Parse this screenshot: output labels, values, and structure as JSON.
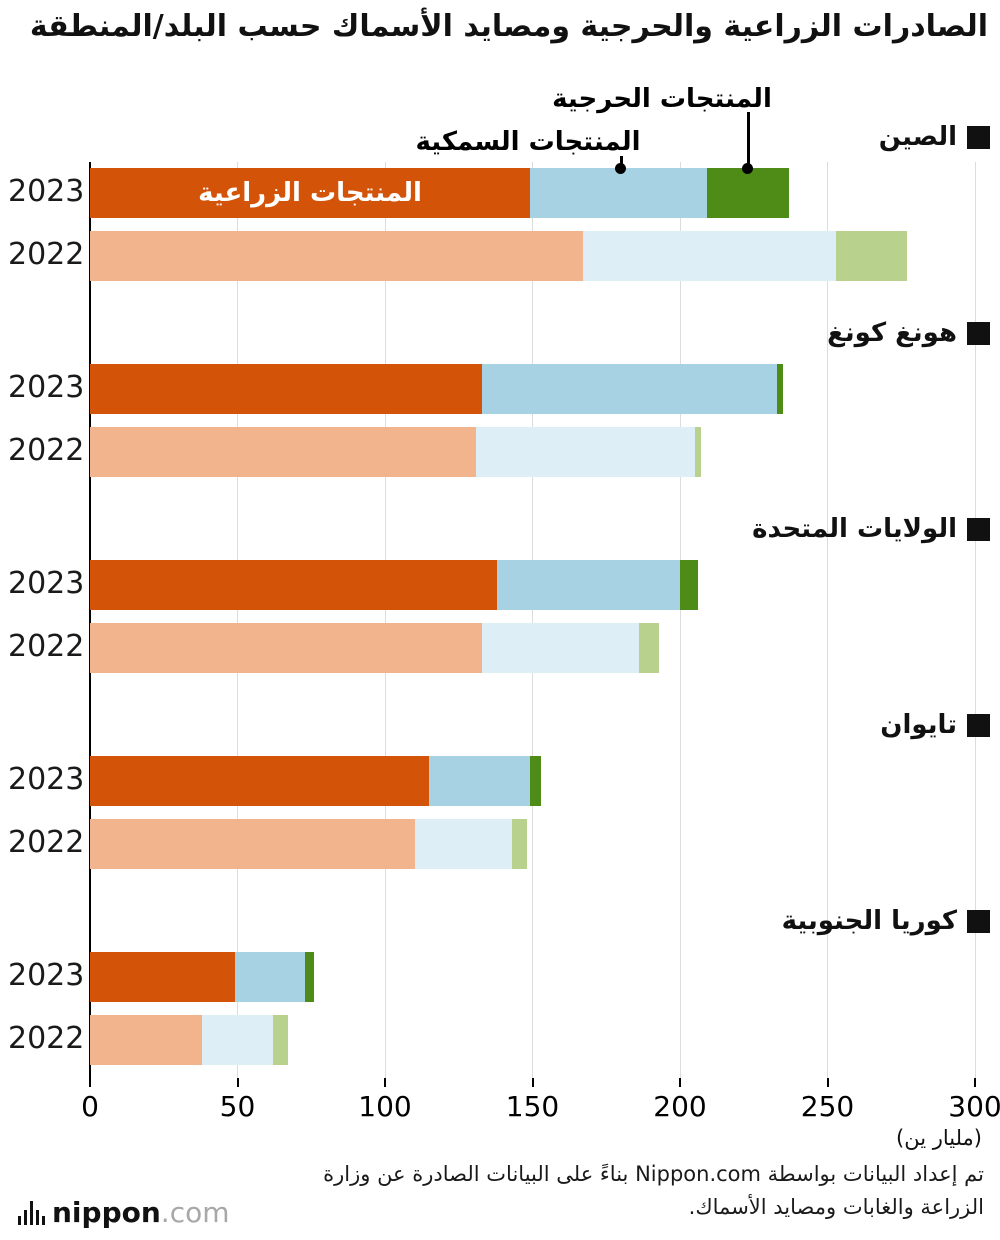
{
  "title": "الصادرات الزراعية والحرجية ومصايد الأسماك حسب البلد/المنطقة",
  "legend": {
    "forestry": "المنتجات الحرجية",
    "fishery": "المنتجات السمكية",
    "agriculture": "المنتجات الزراعية"
  },
  "colors": {
    "y2023": {
      "agriculture": "#d35408",
      "fishery": "#a6d2e3",
      "forestry": "#4e8b17"
    },
    "y2022": {
      "agriculture": "#f2b48c",
      "fishery": "#ddeef6",
      "forestry": "#b8d28e"
    }
  },
  "axis": {
    "ticks": [
      0,
      50,
      100,
      150,
      200,
      250,
      300
    ],
    "max": 300,
    "unit": "(مليار ين)"
  },
  "chart_data": {
    "type": "bar",
    "orientation": "horizontal",
    "stacked": true,
    "title": "الصادرات الزراعية والحرجية ومصايد الأسماك حسب البلد/المنطقة",
    "unit": "مليار ين",
    "xlim": [
      0,
      300
    ],
    "grid": true,
    "segments_order": [
      "agriculture",
      "fishery",
      "forestry"
    ],
    "series_labels": {
      "agriculture": "المنتجات الزراعية",
      "fishery": "المنتجات السمكية",
      "forestry": "المنتجات الحرجية"
    },
    "groups": [
      {
        "id": "china",
        "country": "الصين",
        "rows": [
          {
            "year": "2023",
            "agriculture": 149,
            "fishery": 60,
            "forestry": 28
          },
          {
            "year": "2022",
            "agriculture": 167,
            "fishery": 86,
            "forestry": 24
          }
        ]
      },
      {
        "id": "hong-kong",
        "country": "هونغ كونغ",
        "rows": [
          {
            "year": "2023",
            "agriculture": 133,
            "fishery": 100,
            "forestry": 2
          },
          {
            "year": "2022",
            "agriculture": 131,
            "fishery": 74,
            "forestry": 2
          }
        ]
      },
      {
        "id": "united-states",
        "country": "الولايات المتحدة",
        "rows": [
          {
            "year": "2023",
            "agriculture": 138,
            "fishery": 62,
            "forestry": 6
          },
          {
            "year": "2022",
            "agriculture": 133,
            "fishery": 53,
            "forestry": 7
          }
        ]
      },
      {
        "id": "taiwan",
        "country": "تايوان",
        "rows": [
          {
            "year": "2023",
            "agriculture": 115,
            "fishery": 34,
            "forestry": 4
          },
          {
            "year": "2022",
            "agriculture": 110,
            "fishery": 33,
            "forestry": 5
          }
        ]
      },
      {
        "id": "south-korea",
        "country": "كوريا الجنوبية",
        "rows": [
          {
            "year": "2023",
            "agriculture": 49,
            "fishery": 24,
            "forestry": 3
          },
          {
            "year": "2022",
            "agriculture": 38,
            "fishery": 24,
            "forestry": 5
          }
        ]
      }
    ]
  },
  "footer": {
    "line1": "تم إعداد البيانات بواسطة Nippon.com بناءً على البيانات الصادرة عن وزارة",
    "line2": "الزراعة والغابات ومصايد الأسماك."
  },
  "logo": {
    "name": "nippon",
    "tld": ".com"
  }
}
